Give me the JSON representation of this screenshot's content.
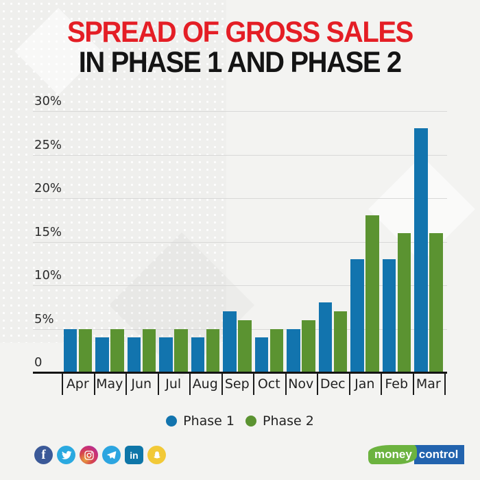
{
  "title": {
    "line1": "SPREAD OF GROSS SALES",
    "line2": "IN PHASE 1 AND PHASE 2",
    "line1_color": "#e41e25",
    "line2_color": "#141414"
  },
  "chart_data": {
    "type": "bar",
    "title": "Spread of gross sales in Phase 1 and Phase 2",
    "categories": [
      "Apr",
      "May",
      "Jun",
      "Jul",
      "Aug",
      "Sep",
      "Oct",
      "Nov",
      "Dec",
      "Jan",
      "Feb",
      "Mar"
    ],
    "series": [
      {
        "name": "Phase 1",
        "color": "#1274ae",
        "values": [
          5,
          4,
          4,
          4,
          4,
          7,
          4,
          5,
          8,
          13,
          13,
          28
        ]
      },
      {
        "name": "Phase 2",
        "color": "#5b9331",
        "values": [
          5,
          5,
          5,
          5,
          5,
          6,
          5,
          6,
          7,
          18,
          16,
          16
        ]
      }
    ],
    "xlabel": "",
    "ylabel": "",
    "ylim": [
      0,
      30
    ],
    "y_ticks": [
      "0",
      "5%",
      "10%",
      "15%",
      "20%",
      "25%",
      "30%"
    ],
    "y_tick_values": [
      0,
      5,
      10,
      15,
      20,
      25,
      30
    ],
    "grid": true,
    "legend_position": "bottom",
    "value_unit": "percent"
  },
  "legend": [
    {
      "label": "Phase 1",
      "color": "#1274ae"
    },
    {
      "label": "Phase 2",
      "color": "#5b9331"
    }
  ],
  "social_icons": [
    {
      "name": "facebook",
      "glyph": "f",
      "color": "#3b5998"
    },
    {
      "name": "twitter",
      "color": "#2aa9e0"
    },
    {
      "name": "instagram",
      "color": "#c92f77"
    },
    {
      "name": "telegram",
      "color": "#2ca5e0"
    },
    {
      "name": "linkedin",
      "glyph": "in",
      "color": "#0e76a8"
    },
    {
      "name": "snapchat",
      "color": "#f2c937"
    }
  ],
  "logo": {
    "part1": "money",
    "part2": "control",
    "green": "#6cb33f",
    "blue": "#2263ae"
  }
}
